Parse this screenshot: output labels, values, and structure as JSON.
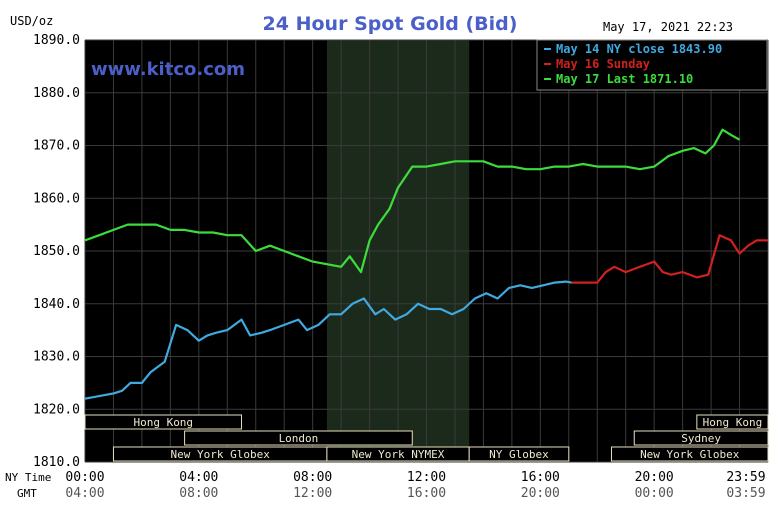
{
  "chart_data": {
    "type": "line",
    "title": "24 Hour Spot Gold (Bid)",
    "ylabel": "USD/oz",
    "timestamp": "May 17, 2021 22:23",
    "watermark": "www.kitco.com",
    "ylim": [
      1810,
      1890
    ],
    "xlim": [
      0,
      24
    ],
    "grid": true,
    "legend_position": "top-right",
    "y_ticks": [
      "1890.0",
      "1880.0",
      "1870.0",
      "1860.0",
      "1850.0",
      "1840.0",
      "1830.0",
      "1820.0",
      "1810.0"
    ],
    "x_ticks_ny": [
      "00:00",
      "04:00",
      "08:00",
      "12:00",
      "16:00",
      "20:00",
      "23:59"
    ],
    "x_ticks_gmt": [
      "04:00",
      "08:00",
      "12:00",
      "16:00",
      "20:00",
      "00:00",
      "03:59"
    ],
    "x_row_label_ny": "NY Time",
    "x_row_label_gmt": "GMT",
    "shaded_region": [
      8.5,
      13.5
    ],
    "sessions": [
      {
        "name": "Hong Kong",
        "start": 0,
        "end": 5.5,
        "row": 0
      },
      {
        "name": "Hong Kong",
        "start": 21.5,
        "end": 24,
        "row": 0
      },
      {
        "name": "London",
        "start": 3.5,
        "end": 11.5,
        "row": 1
      },
      {
        "name": "Sydney",
        "start": 19.3,
        "end": 24,
        "row": 1
      },
      {
        "name": "New York Globex",
        "start": 1.0,
        "end": 8.5,
        "row": 2
      },
      {
        "name": "New York NYMEX",
        "start": 8.5,
        "end": 13.5,
        "row": 2
      },
      {
        "name": "NY Globex",
        "start": 13.5,
        "end": 17.0,
        "row": 2
      },
      {
        "name": "New York Globex",
        "start": 18.5,
        "end": 24,
        "row": 2
      }
    ],
    "series": [
      {
        "name": "May 14 NY close 1843.90",
        "color": "#3fa9e0",
        "x": [
          0,
          0.5,
          1,
          1.3,
          1.6,
          2.0,
          2.3,
          2.8,
          3.2,
          3.6,
          4.0,
          4.3,
          4.6,
          5.0,
          5.5,
          5.8,
          6.2,
          6.5,
          7.0,
          7.5,
          7.8,
          8.2,
          8.6,
          9.0,
          9.4,
          9.8,
          10.2,
          10.5,
          10.9,
          11.3,
          11.7,
          12.1,
          12.5,
          12.9,
          13.3,
          13.7,
          14.1,
          14.5,
          14.9,
          15.3,
          15.7,
          16.1,
          16.5,
          16.9,
          17.1
        ],
        "values": [
          1822,
          1822.5,
          1823,
          1823.5,
          1825,
          1825,
          1827,
          1829,
          1836,
          1835,
          1833,
          1834,
          1834.5,
          1835,
          1837,
          1834,
          1834.5,
          1835,
          1836,
          1837,
          1835,
          1836,
          1838,
          1838,
          1840,
          1841,
          1838,
          1839,
          1837,
          1838,
          1840,
          1839,
          1839,
          1838,
          1839,
          1841,
          1842,
          1841,
          1843,
          1843.5,
          1843,
          1843.5,
          1844,
          1844.2,
          1844
        ]
      },
      {
        "name": "May 16 Sunday",
        "color": "#d02020",
        "x": [
          17.1,
          18.0,
          18.3,
          18.6,
          19.0,
          19.5,
          20.0,
          20.3,
          20.6,
          21.0,
          21.5,
          21.9,
          22.3,
          22.7,
          23.0,
          23.3,
          23.6,
          24.0
        ],
        "values": [
          1844,
          1844,
          1846,
          1847,
          1846,
          1847,
          1848,
          1846,
          1845.5,
          1846,
          1845,
          1845.5,
          1853,
          1852,
          1849.5,
          1851,
          1852,
          1852
        ]
      },
      {
        "name": "May 17 Last 1871.10",
        "color": "#3ddc3d",
        "x": [
          0,
          0.5,
          1.0,
          1.5,
          2.0,
          2.5,
          3.0,
          3.5,
          4.0,
          4.5,
          5.0,
          5.5,
          6.0,
          6.5,
          7.0,
          7.5,
          8.0,
          8.5,
          9.0,
          9.3,
          9.7,
          10.0,
          10.3,
          10.7,
          11.0,
          11.5,
          12.0,
          12.5,
          13.0,
          13.5,
          14.0,
          14.5,
          15.0,
          15.5,
          16.0,
          16.5,
          17.0,
          17.5,
          18.0,
          18.5,
          19.0,
          19.5,
          20.0,
          20.5,
          21.0,
          21.4,
          21.8,
          22.1,
          22.4,
          22.7,
          23.0
        ],
        "values": [
          1852,
          1853,
          1854,
          1855,
          1855,
          1855,
          1854,
          1854,
          1853.5,
          1853.5,
          1853,
          1853,
          1850,
          1851,
          1850,
          1849,
          1848,
          1847.5,
          1847,
          1849,
          1846,
          1852,
          1855,
          1858,
          1862,
          1866,
          1866,
          1866.5,
          1867,
          1867,
          1867,
          1866,
          1866,
          1865.5,
          1865.5,
          1866,
          1866,
          1866.5,
          1866,
          1866,
          1866,
          1865.5,
          1866,
          1868,
          1869,
          1869.5,
          1868.5,
          1870,
          1873,
          1872,
          1871.1
        ]
      }
    ]
  }
}
